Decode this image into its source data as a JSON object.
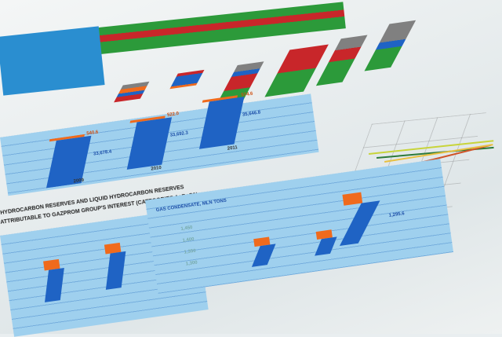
{
  "top_chart": {
    "colors": [
      "#c8262a",
      "#2c9a3a",
      "#1f63c4",
      "#f06a1c",
      "#808080"
    ]
  },
  "middle_chart": {
    "years": [
      "2009",
      "2010",
      "2011"
    ],
    "values": [
      "33,678.4",
      "33,692.3",
      "35,646.8"
    ],
    "caps": [
      "540.6",
      "522.0",
      "574.6"
    ]
  },
  "heading": {
    "line1": "HYDROCARBON RESERVES AND LIQUID HYDROCARBON RESERVES",
    "line2": "ATTRIBUTABLE TO GAZPROM GROUP'S INTEREST (CATEGORIES A+B+C1)"
  },
  "right_chart": {
    "title": "GAS CONDENSATE, MLN TONS",
    "axis": [
      "1,450",
      "1,400",
      "1,350",
      "1,300"
    ],
    "value": "1,295.6"
  },
  "colors": {
    "panel": "#9fd0ee",
    "bar": "#1f63c4",
    "accent": "#f06a1c"
  }
}
